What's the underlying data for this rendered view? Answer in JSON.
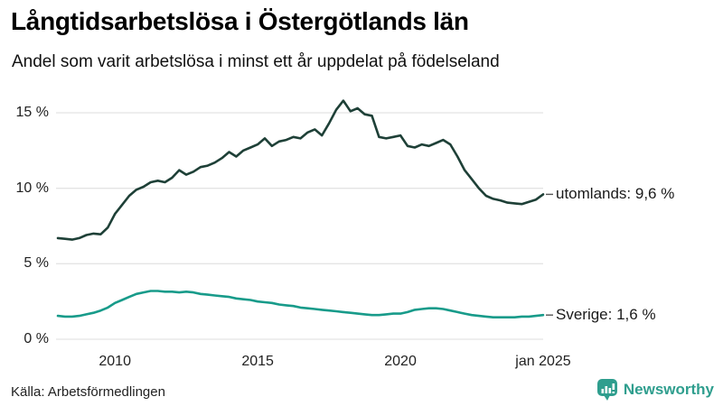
{
  "header": {
    "title": "Långtidsarbetslösa i Östergötlands län",
    "subtitle": "Andel som varit arbetslösa i minst ett år uppdelat på födelseland"
  },
  "footer": {
    "source": "Källa: Arbetsförmedlingen",
    "brand": "Newsworthy"
  },
  "colors": {
    "utomlands_line": "#1e4037",
    "sverige_line": "#189b8a",
    "grid": "#e4e4e4",
    "label_dash": "#555555",
    "brand_teal": "#2f9e8e",
    "text": "#1a1a1a"
  },
  "chart_data": {
    "type": "line",
    "title": "Långtidsarbetslösa i Östergötlands län",
    "subtitle": "Andel som varit arbetslösa i minst ett år uppdelat på födelseland",
    "xlabel": "",
    "ylabel": "",
    "unit": "%",
    "grid": "horizontal",
    "legend_position": "end-of-line-labels",
    "x_range": [
      2008,
      2025
    ],
    "y_range": [
      0,
      16
    ],
    "x_ticks": [
      {
        "value": 2010,
        "label": "2010"
      },
      {
        "value": 2015,
        "label": "2015"
      },
      {
        "value": 2020,
        "label": "2020"
      },
      {
        "value": 2025,
        "label": "jan 2025"
      }
    ],
    "y_ticks": [
      {
        "value": 0,
        "label": "0 %"
      },
      {
        "value": 5,
        "label": "5 %"
      },
      {
        "value": 10,
        "label": "10 %"
      },
      {
        "value": 15,
        "label": "15 %"
      }
    ],
    "x": [
      2008.0,
      2008.25,
      2008.5,
      2008.75,
      2009.0,
      2009.25,
      2009.5,
      2009.75,
      2010.0,
      2010.25,
      2010.5,
      2010.75,
      2011.0,
      2011.25,
      2011.5,
      2011.75,
      2012.0,
      2012.25,
      2012.5,
      2012.75,
      2013.0,
      2013.25,
      2013.5,
      2013.75,
      2014.0,
      2014.25,
      2014.5,
      2014.75,
      2015.0,
      2015.25,
      2015.5,
      2015.75,
      2016.0,
      2016.25,
      2016.5,
      2016.75,
      2017.0,
      2017.25,
      2017.5,
      2017.75,
      2018.0,
      2018.25,
      2018.5,
      2018.75,
      2019.0,
      2019.25,
      2019.5,
      2019.75,
      2020.0,
      2020.25,
      2020.5,
      2020.75,
      2021.0,
      2021.25,
      2021.5,
      2021.75,
      2022.0,
      2022.25,
      2022.5,
      2022.75,
      2023.0,
      2023.25,
      2023.5,
      2023.75,
      2024.0,
      2024.25,
      2024.5,
      2024.75,
      2025.0
    ],
    "series": [
      {
        "name": "utomlands",
        "end_label": "utomlands: 9,6 %",
        "last_value": 9.6,
        "color": "#1e4037",
        "values": [
          6.7,
          6.65,
          6.6,
          6.7,
          6.9,
          7.0,
          6.95,
          7.4,
          8.3,
          8.9,
          9.5,
          9.9,
          10.1,
          10.4,
          10.5,
          10.4,
          10.7,
          11.2,
          10.9,
          11.1,
          11.4,
          11.5,
          11.7,
          12.0,
          12.4,
          12.1,
          12.5,
          12.7,
          12.9,
          13.3,
          12.8,
          13.1,
          13.2,
          13.4,
          13.3,
          13.7,
          13.9,
          13.5,
          14.3,
          15.2,
          15.8,
          15.1,
          15.3,
          14.9,
          14.8,
          13.4,
          13.3,
          13.4,
          13.5,
          12.8,
          12.7,
          12.9,
          12.8,
          13.0,
          13.2,
          12.9,
          12.1,
          11.2,
          10.6,
          10.0,
          9.5,
          9.3,
          9.2,
          9.05,
          9.0,
          8.95,
          9.1,
          9.25,
          9.6
        ]
      },
      {
        "name": "Sverige",
        "end_label": "Sverige: 1,6 %",
        "last_value": 1.6,
        "color": "#189b8a",
        "values": [
          1.55,
          1.5,
          1.5,
          1.55,
          1.65,
          1.75,
          1.9,
          2.1,
          2.4,
          2.6,
          2.8,
          3.0,
          3.1,
          3.2,
          3.2,
          3.15,
          3.15,
          3.1,
          3.15,
          3.1,
          3.0,
          2.95,
          2.9,
          2.85,
          2.8,
          2.7,
          2.65,
          2.6,
          2.5,
          2.45,
          2.4,
          2.3,
          2.25,
          2.2,
          2.1,
          2.05,
          2.0,
          1.95,
          1.9,
          1.85,
          1.8,
          1.75,
          1.7,
          1.65,
          1.6,
          1.6,
          1.65,
          1.7,
          1.7,
          1.8,
          1.95,
          2.0,
          2.05,
          2.05,
          2.0,
          1.9,
          1.8,
          1.7,
          1.6,
          1.55,
          1.5,
          1.45,
          1.45,
          1.45,
          1.45,
          1.5,
          1.5,
          1.55,
          1.6
        ]
      }
    ]
  }
}
